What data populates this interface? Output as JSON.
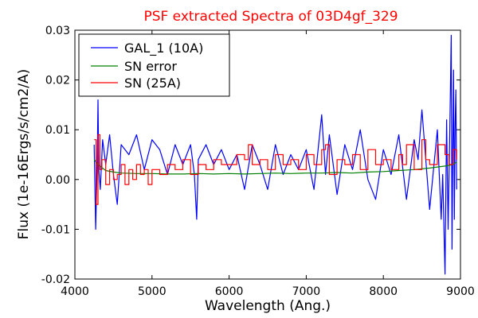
{
  "chart_data": {
    "type": "line",
    "title": "PSF extracted Spectra of 03D4gf_329",
    "xlabel": "Wavelength (Ang.)",
    "ylabel": "Flux (1e-16Ergs/s/cm2/A)",
    "xlim": [
      4000,
      9000
    ],
    "ylim": [
      -0.02,
      0.03
    ],
    "xticks": [
      4000,
      5000,
      6000,
      7000,
      8000,
      9000
    ],
    "xtick_labels": [
      "4000",
      "5000",
      "6000",
      "7000",
      "8000",
      "9000"
    ],
    "yticks": [
      -0.02,
      -0.01,
      0.0,
      0.01,
      0.02,
      0.03
    ],
    "ytick_labels": [
      "-0.02",
      "-0.01",
      "0.00",
      "0.01",
      "0.02",
      "0.03"
    ],
    "grid": false,
    "legend_position": "top-left",
    "series": [
      {
        "name": "GAL_1 (10A)",
        "color": "#0000ff",
        "step": false,
        "x": [
          4250,
          4270,
          4290,
          4300,
          4310,
          4330,
          4360,
          4400,
          4450,
          4500,
          4550,
          4600,
          4700,
          4800,
          4900,
          5000,
          5100,
          5200,
          5300,
          5400,
          5500,
          5550,
          5580,
          5600,
          5700,
          5800,
          5900,
          6000,
          6100,
          6200,
          6300,
          6400,
          6500,
          6600,
          6700,
          6800,
          6900,
          7000,
          7100,
          7200,
          7250,
          7300,
          7400,
          7500,
          7600,
          7700,
          7800,
          7900,
          8000,
          8100,
          8200,
          8300,
          8400,
          8450,
          8500,
          8600,
          8700,
          8750,
          8770,
          8800,
          8820,
          8840,
          8860,
          8880,
          8890,
          8900,
          8910,
          8920,
          8930,
          8940,
          8950
        ],
        "y": [
          0.007,
          -0.01,
          0.004,
          0.016,
          0.002,
          -0.002,
          0.008,
          0.003,
          0.009,
          0.001,
          -0.005,
          0.007,
          0.005,
          0.009,
          0.002,
          0.008,
          0.006,
          0.001,
          0.007,
          0.003,
          0.007,
          0.001,
          -0.008,
          0.004,
          0.007,
          0.003,
          0.006,
          0.002,
          0.005,
          -0.002,
          0.007,
          0.003,
          -0.002,
          0.007,
          0.001,
          0.005,
          0.002,
          0.006,
          -0.002,
          0.013,
          0.001,
          0.009,
          -0.003,
          0.007,
          0.002,
          0.01,
          0.0,
          -0.004,
          0.006,
          0.001,
          0.009,
          -0.004,
          0.008,
          0.004,
          0.014,
          -0.006,
          0.01,
          -0.008,
          0.001,
          -0.019,
          0.012,
          -0.01,
          0.008,
          0.029,
          -0.014,
          0.005,
          0.022,
          -0.008,
          0.01,
          0.018,
          -0.002
        ]
      },
      {
        "name": "SN error",
        "color": "#008000",
        "step": false,
        "x": [
          4250,
          4300,
          4400,
          4500,
          4600,
          4800,
          5000,
          5200,
          5400,
          5600,
          5800,
          6000,
          6200,
          6400,
          6600,
          6800,
          7000,
          7200,
          7400,
          7600,
          7800,
          8000,
          8200,
          8400,
          8600,
          8800,
          8900,
          8950
        ],
        "y": [
          0.004,
          0.003,
          0.0018,
          0.0015,
          0.0013,
          0.0012,
          0.0012,
          0.0011,
          0.0011,
          0.0012,
          0.0011,
          0.0012,
          0.0011,
          0.0012,
          0.0013,
          0.0012,
          0.0013,
          0.0013,
          0.0014,
          0.0013,
          0.0015,
          0.0016,
          0.0018,
          0.002,
          0.0023,
          0.0027,
          0.003,
          0.0035
        ]
      },
      {
        "name": "SN (25A)",
        "color": "#ff0000",
        "step": true,
        "x": [
          4250,
          4275,
          4300,
          4325,
          4350,
          4400,
          4450,
          4500,
          4550,
          4600,
          4650,
          4700,
          4750,
          4800,
          4850,
          4900,
          4950,
          5000,
          5100,
          5200,
          5300,
          5400,
          5500,
          5600,
          5700,
          5800,
          5900,
          6000,
          6100,
          6200,
          6250,
          6300,
          6400,
          6500,
          6600,
          6700,
          6800,
          6900,
          7000,
          7100,
          7200,
          7250,
          7300,
          7400,
          7500,
          7600,
          7700,
          7800,
          7900,
          8000,
          8100,
          8200,
          8250,
          8300,
          8400,
          8500,
          8550,
          8600,
          8700,
          8800,
          8850,
          8900,
          8950
        ],
        "y": [
          0.008,
          -0.005,
          0.009,
          0.002,
          0.004,
          -0.001,
          0.002,
          0.0,
          0.001,
          0.003,
          -0.001,
          0.002,
          0.0,
          0.003,
          0.001,
          0.002,
          -0.001,
          0.002,
          0.001,
          0.003,
          0.002,
          0.004,
          0.001,
          0.003,
          0.002,
          0.004,
          0.003,
          0.003,
          0.005,
          0.004,
          0.007,
          0.003,
          0.004,
          0.002,
          0.005,
          0.003,
          0.004,
          0.002,
          0.005,
          0.003,
          0.006,
          0.007,
          0.001,
          0.004,
          0.003,
          0.005,
          0.002,
          0.006,
          0.003,
          0.004,
          0.002,
          0.005,
          0.003,
          0.007,
          0.002,
          0.008,
          0.004,
          0.003,
          0.007,
          0.005,
          0.003,
          0.006,
          0.004
        ]
      }
    ]
  }
}
